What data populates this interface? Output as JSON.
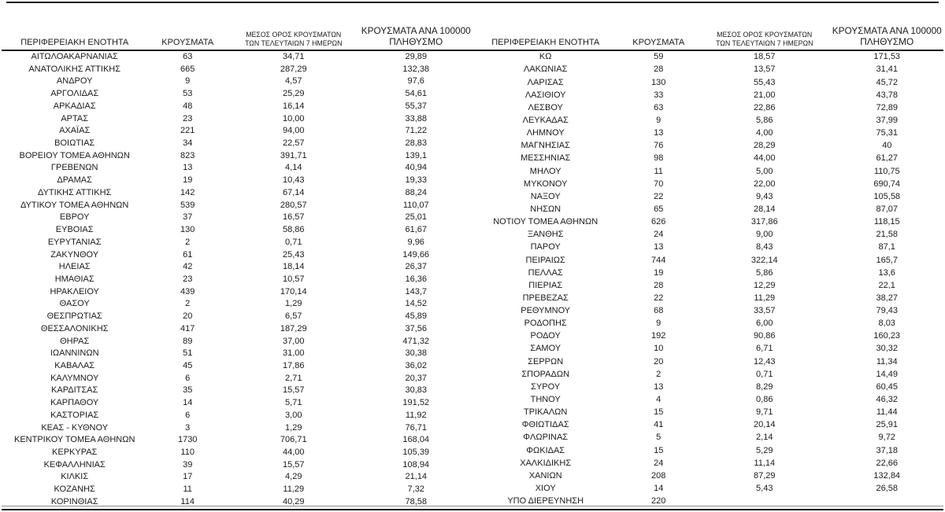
{
  "headers": {
    "region": "ΠΕΡΙΦΕΡΕΙΑΚΗ ΕΝΟΤΗΤΑ",
    "cases": "ΚΡΟΥΣΜΑΤΑ",
    "avg7_line1": "ΜΕΣΟΣ ΟΡΟΣ ΚΡΟΥΣΜΑΤΩΝ",
    "avg7_line2": "ΤΩΝ ΤΕΛΕΥΤΑΙΩΝ 7 ΗΜΕΡΩΝ",
    "per100k_line1": "ΚΡΟΥΣΜΑΤΑ ΑΝΑ 100000",
    "per100k_line2": "ΠΛΗΘΥΣΜΟ"
  },
  "left_rows": [
    [
      "ΑΙΤΩΛΟΑΚΑΡΝΑΝΙΑΣ",
      "63",
      "34,71",
      "29,89"
    ],
    [
      "ΑΝΑΤΟΛΙΚΗΣ ΑΤΤΙΚΗΣ",
      "665",
      "287,29",
      "132,38"
    ],
    [
      "ΑΝΔΡΟΥ",
      "9",
      "4,57",
      "97,6"
    ],
    [
      "ΑΡΓΟΛΙΔΑΣ",
      "53",
      "25,29",
      "54,61"
    ],
    [
      "ΑΡΚΑΔΙΑΣ",
      "48",
      "16,14",
      "55,37"
    ],
    [
      "ΑΡΤΑΣ",
      "23",
      "10,00",
      "33,88"
    ],
    [
      "ΑΧΑΪΑΣ",
      "221",
      "94,00",
      "71,22"
    ],
    [
      "ΒΟΙΩΤΙΑΣ",
      "34",
      "22,57",
      "28,83"
    ],
    [
      "ΒΟΡΕΙΟΥ ΤΟΜΕΑ ΑΘΗΝΩΝ",
      "823",
      "391,71",
      "139,1"
    ],
    [
      "ΓΡΕΒΕΝΩΝ",
      "13",
      "4,14",
      "40,94"
    ],
    [
      "ΔΡΑΜΑΣ",
      "19",
      "10,43",
      "19,33"
    ],
    [
      "ΔΥΤΙΚΗΣ ΑΤΤΙΚΗΣ",
      "142",
      "67,14",
      "88,24"
    ],
    [
      "ΔΥΤΙΚΟΥ ΤΟΜΕΑ ΑΘΗΝΩΝ",
      "539",
      "280,57",
      "110,07"
    ],
    [
      "ΕΒΡΟΥ",
      "37",
      "16,57",
      "25,01"
    ],
    [
      "ΕΥΒΟΙΑΣ",
      "130",
      "58,86",
      "61,67"
    ],
    [
      "ΕΥΡΥΤΑΝΙΑΣ",
      "2",
      "0,71",
      "9,96"
    ],
    [
      "ΖΑΚΥΝΘΟΥ",
      "61",
      "25,43",
      "149,66"
    ],
    [
      "ΗΛΕΙΑΣ",
      "42",
      "18,14",
      "26,37"
    ],
    [
      "ΗΜΑΘΙΑΣ",
      "23",
      "10,57",
      "16,36"
    ],
    [
      "ΗΡΑΚΛΕΙΟΥ",
      "439",
      "170,14",
      "143,7"
    ],
    [
      "ΘΑΣΟΥ",
      "2",
      "1,29",
      "14,52"
    ],
    [
      "ΘΕΣΠΡΩΤΙΑΣ",
      "20",
      "6,57",
      "45,89"
    ],
    [
      "ΘΕΣΣΑΛΟΝΙΚΗΣ",
      "417",
      "187,29",
      "37,56"
    ],
    [
      "ΘΗΡΑΣ",
      "89",
      "37,00",
      "471,32"
    ],
    [
      "ΙΩΑΝΝΙΝΩΝ",
      "51",
      "31,00",
      "30,38"
    ],
    [
      "ΚΑΒΑΛΑΣ",
      "45",
      "17,86",
      "36,02"
    ],
    [
      "ΚΑΛΥΜΝΟΥ",
      "6",
      "2,71",
      "20,37"
    ],
    [
      "ΚΑΡΔΙΤΣΑΣ",
      "35",
      "15,57",
      "30,83"
    ],
    [
      "ΚΑΡΠΑΘΟΥ",
      "14",
      "5,71",
      "191,52"
    ],
    [
      "ΚΑΣΤΟΡΙΑΣ",
      "6",
      "3,00",
      "11,92"
    ],
    [
      "ΚΕΑΣ - ΚΥΘΝΟΥ",
      "3",
      "1,29",
      "76,71"
    ],
    [
      "ΚΕΝΤΡΙΚΟΥ ΤΟΜΕΑ ΑΘΗΝΩΝ",
      "1730",
      "706,71",
      "168,04"
    ],
    [
      "ΚΕΡΚΥΡΑΣ",
      "110",
      "44,00",
      "105,39"
    ],
    [
      "ΚΕΦΑΛΛΗΝΙΑΣ",
      "39",
      "15,57",
      "108,94"
    ],
    [
      "ΚΙΛΚΙΣ",
      "17",
      "4,29",
      "21,14"
    ],
    [
      "ΚΟΖΑΝΗΣ",
      "11",
      "11,29",
      "7,32"
    ],
    [
      "ΚΟΡΙΝΘΙΑΣ",
      "114",
      "40,29",
      "78,58"
    ]
  ],
  "right_rows": [
    [
      "ΚΩ",
      "59",
      "18,57",
      "171,53"
    ],
    [
      "ΛΑΚΩΝΙΑΣ",
      "28",
      "13,57",
      "31,41"
    ],
    [
      "ΛΑΡΙΣΑΣ",
      "130",
      "55,43",
      "45,72"
    ],
    [
      "ΛΑΣΙΘΙΟΥ",
      "33",
      "21,00",
      "43,78"
    ],
    [
      "ΛΕΣΒΟΥ",
      "63",
      "22,86",
      "72,89"
    ],
    [
      "ΛΕΥΚΑΔΑΣ",
      "9",
      "5,86",
      "37,99"
    ],
    [
      "ΛΗΜΝΟΥ",
      "13",
      "4,00",
      "75,31"
    ],
    [
      "ΜΑΓΝΗΣΙΑΣ",
      "76",
      "28,29",
      "40"
    ],
    [
      "ΜΕΣΣΗΝΙΑΣ",
      "98",
      "44,00",
      "61,27"
    ],
    [
      "ΜΗΛΟΥ",
      "11",
      "5,00",
      "110,75"
    ],
    [
      "ΜΥΚΟΝΟΥ",
      "70",
      "22,00",
      "690,74"
    ],
    [
      "ΝΑΞΟΥ",
      "22",
      "9,43",
      "105,58"
    ],
    [
      "ΝΗΣΩΝ",
      "65",
      "28,14",
      "87,07"
    ],
    [
      "ΝΟΤΙΟΥ ΤΟΜΕΑ ΑΘΗΝΩΝ",
      "626",
      "317,86",
      "118,15"
    ],
    [
      "ΞΑΝΘΗΣ",
      "24",
      "9,00",
      "21,58"
    ],
    [
      "ΠΑΡΟΥ",
      "13",
      "8,43",
      "87,1"
    ],
    [
      "ΠΕΙΡΑΙΩΣ",
      "744",
      "322,14",
      "165,7"
    ],
    [
      "ΠΕΛΛΑΣ",
      "19",
      "5,86",
      "13,6"
    ],
    [
      "ΠΙΕΡΙΑΣ",
      "28",
      "12,29",
      "22,1"
    ],
    [
      "ΠΡΕΒΕΖΑΣ",
      "22",
      "11,29",
      "38,27"
    ],
    [
      "ΡΕΘΥΜΝΟΥ",
      "68",
      "33,57",
      "79,43"
    ],
    [
      "ΡΟΔΟΠΗΣ",
      "9",
      "6,00",
      "8,03"
    ],
    [
      "ΡΟΔΟΥ",
      "192",
      "90,86",
      "160,23"
    ],
    [
      "ΣΑΜΟΥ",
      "10",
      "6,71",
      "30,32"
    ],
    [
      "ΣΕΡΡΩΝ",
      "20",
      "12,43",
      "11,34"
    ],
    [
      "ΣΠΟΡΑΔΩΝ",
      "2",
      "0,71",
      "14,49"
    ],
    [
      "ΣΥΡΟΥ",
      "13",
      "8,29",
      "60,45"
    ],
    [
      "ΤΗΝΟΥ",
      "4",
      "0,86",
      "46,32"
    ],
    [
      "ΤΡΙΚΑΛΩΝ",
      "15",
      "9,71",
      "11,44"
    ],
    [
      "ΦΘΙΩΤΙΔΑΣ",
      "41",
      "20,14",
      "25,91"
    ],
    [
      "ΦΛΩΡΙΝΑΣ",
      "5",
      "2,14",
      "9,72"
    ],
    [
      "ΦΩΚΙΔΑΣ",
      "15",
      "5,29",
      "37,18"
    ],
    [
      "ΧΑΛΚΙΔΙΚΗΣ",
      "24",
      "11,14",
      "22,66"
    ],
    [
      "ΧΑΝΙΩΝ",
      "208",
      "87,29",
      "132,84"
    ],
    [
      "ΧΙΟΥ",
      "14",
      "5,43",
      "26,58"
    ],
    [
      "ΥΠΟ ΔΙΕΡΕΥΝΗΣΗ",
      "220",
      "",
      ""
    ]
  ]
}
